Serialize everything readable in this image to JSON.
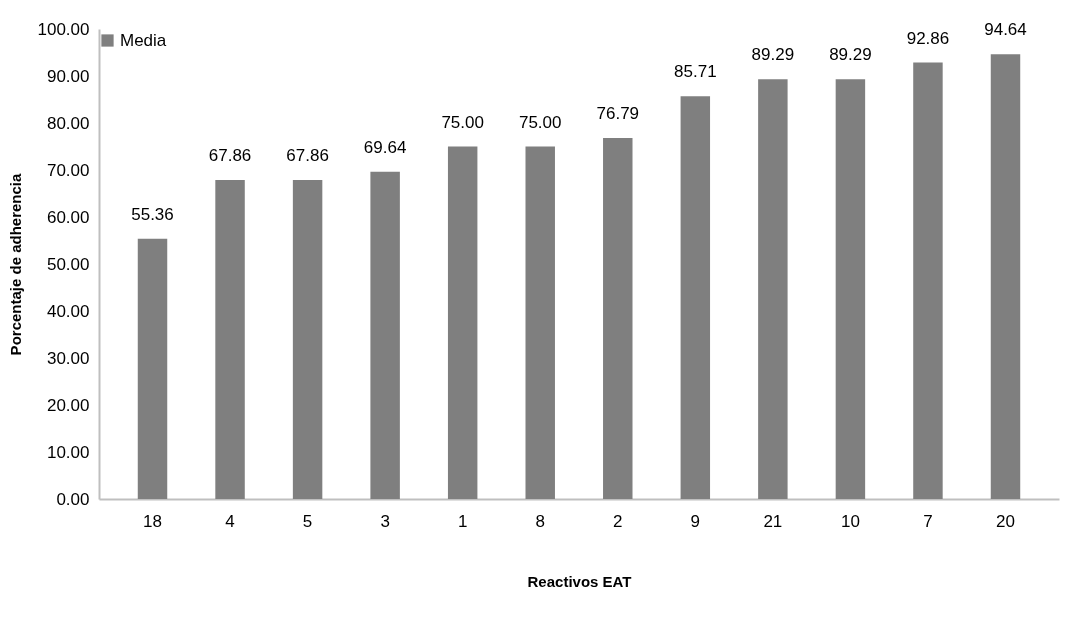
{
  "chart_data": {
    "type": "bar",
    "xlabel": "Reactivos EAT",
    "ylabel": "Porcentaje de adherencia",
    "categories": [
      "18",
      "4",
      "5",
      "3",
      "1",
      "8",
      "2",
      "9",
      "21",
      "10",
      "7",
      "20"
    ],
    "series": [
      {
        "name": "Media",
        "color": "#7f7f7f",
        "values": [
          55.36,
          67.86,
          67.86,
          69.64,
          75.0,
          75.0,
          76.79,
          85.71,
          89.29,
          89.29,
          92.86,
          94.64
        ],
        "value_labels": [
          "55.36",
          "67.86",
          "67.86",
          "69.64",
          "75.00",
          "75.00",
          "76.79",
          "85.71",
          "89.29",
          "89.29",
          "92.86",
          "94.64"
        ]
      }
    ],
    "ylim": [
      0,
      100
    ],
    "yticks": [
      {
        "value": 0,
        "label": "0.00"
      },
      {
        "value": 10,
        "label": "10.00"
      },
      {
        "value": 20,
        "label": "20.00"
      },
      {
        "value": 30,
        "label": "30.00"
      },
      {
        "value": 40,
        "label": "40.00"
      },
      {
        "value": 50,
        "label": "50.00"
      },
      {
        "value": 60,
        "label": "60.00"
      },
      {
        "value": 70,
        "label": "70.00"
      },
      {
        "value": 80,
        "label": "80.00"
      },
      {
        "value": 90,
        "label": "90.00"
      },
      {
        "value": 100,
        "label": "100.00"
      }
    ],
    "legend": "top",
    "grid": false
  }
}
